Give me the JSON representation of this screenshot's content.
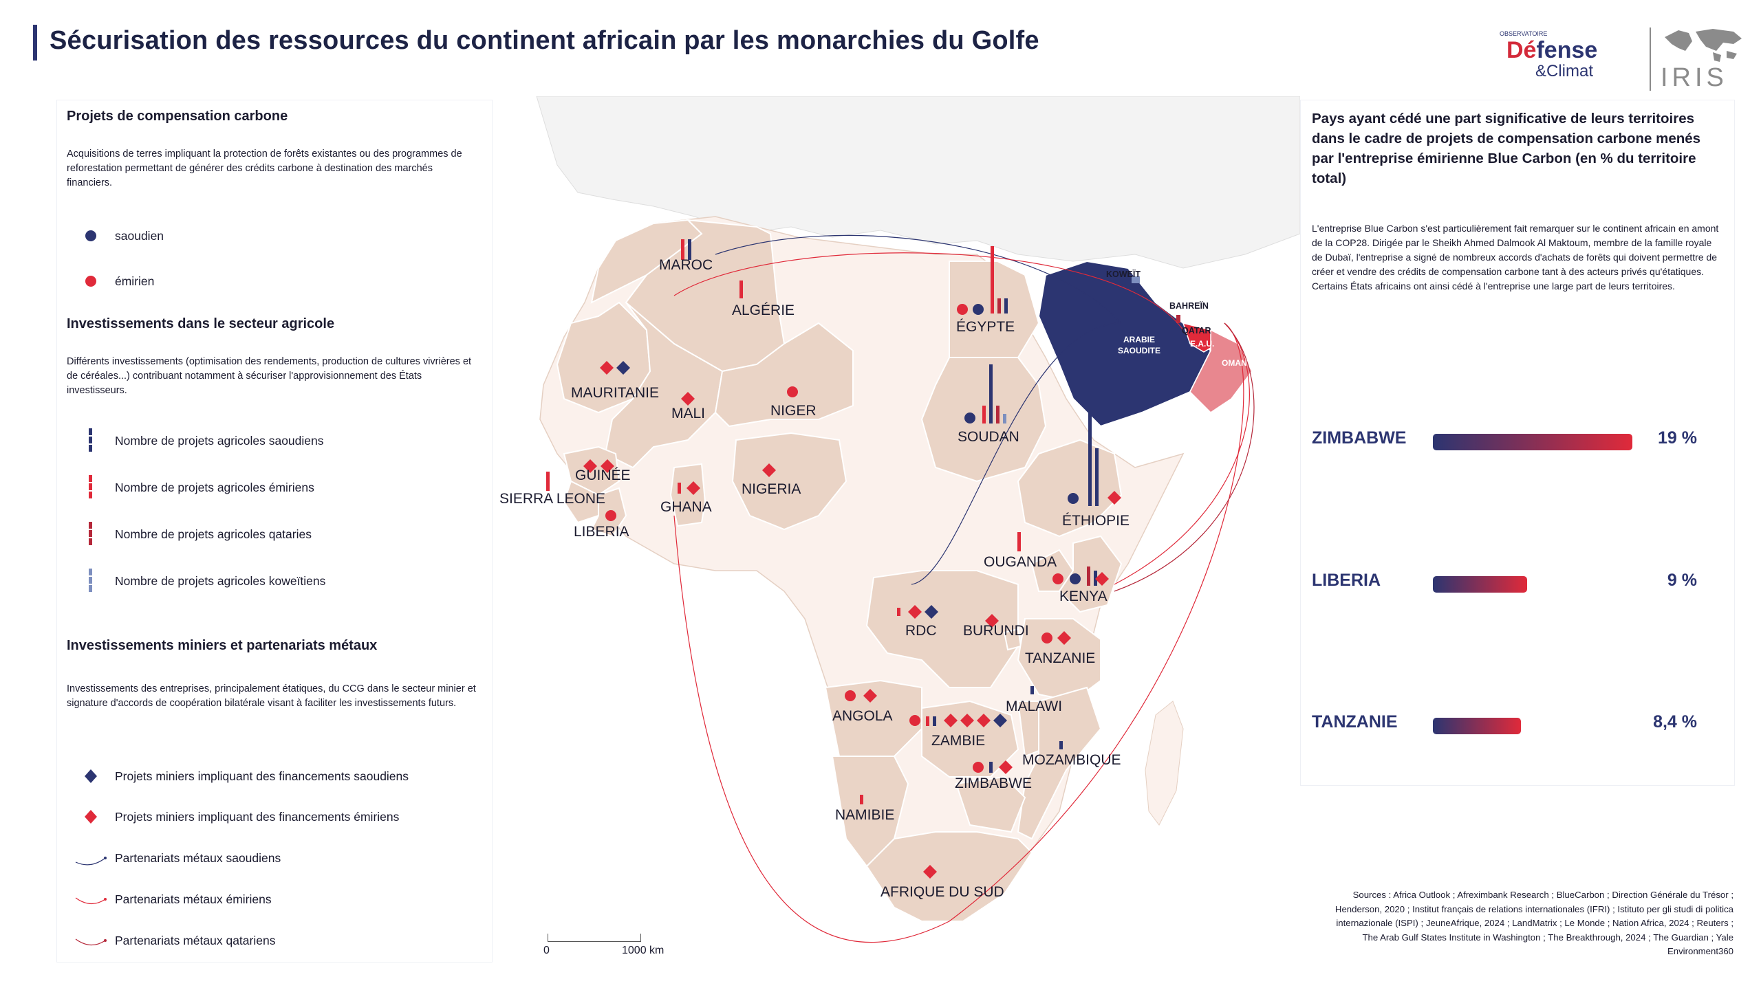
{
  "title": "Sécurisation des ressources du continent africain par les monarchies du Golfe",
  "logos": {
    "defense_pre": "OBSERVATOIRE",
    "defense_main_a": "Dé",
    "defense_main_b": "fense",
    "defense_sub": "&Climat",
    "iris": "IRIS"
  },
  "legend": {
    "sections": [
      {
        "title": "Projets de compensation carbone",
        "description": "Acquisitions de terres impliquant la protection de forêts existantes ou des programmes de reforestation permettant de générer des crédits carbone à destination des marchés financiers.",
        "items": [
          {
            "label": "saoudien",
            "symbol": "circle",
            "color": "#2c3571"
          },
          {
            "label": "émirien",
            "symbol": "circle",
            "color": "#e02a3a"
          }
        ]
      },
      {
        "title": "Investissements dans le secteur agricole",
        "description": "Différents investissements (optimisation des rendements, production de cultures vivrières et de céréales...) contribuant notamment à sécuriser l'approvisionnement des États investisseurs.",
        "items": [
          {
            "label": "Nombre de projets agricoles saoudiens",
            "symbol": "bar",
            "color": "#2c3571"
          },
          {
            "label": "Nombre de projets agricoles émiriens",
            "symbol": "bar",
            "color": "#e02a3a"
          },
          {
            "label": "Nombre de projets agricoles qataries",
            "symbol": "bar",
            "color": "#b5283a"
          },
          {
            "label": "Nombre de projets agricoles koweïtiens",
            "symbol": "bar",
            "color": "#7d8fbf"
          }
        ]
      },
      {
        "title": "Investissements miniers et partenariats métaux",
        "description": "Investissements des entreprises, principalement étatiques, du CCG dans le secteur minier et signature d'accords de coopération bilatérale visant à faciliter les investissements futurs.",
        "items": [
          {
            "label": "Projets miniers impliquant des financements saoudiens",
            "symbol": "diamond",
            "color": "#2c3571"
          },
          {
            "label": "Projets miniers impliquant des financements émiriens",
            "symbol": "diamond",
            "color": "#e02a3a"
          },
          {
            "label": "Partenariats métaux saoudiens",
            "symbol": "arc",
            "color": "#2c3571"
          },
          {
            "label": "Partenariats métaux émiriens",
            "symbol": "arc",
            "color": "#e02a3a"
          },
          {
            "label": "Partenariats métaux qatariens",
            "symbol": "arc",
            "color": "#b5283a"
          }
        ]
      }
    ]
  },
  "right_panel": {
    "title": "Pays ayant cédé une part significative de leurs territoires dans le cadre de projets de compensation carbone menés par l'entreprise émirienne Blue Carbon (en % du territoire total)",
    "description": "L'entreprise Blue Carbon s'est particulièrement fait remarquer sur le continent africain en amont de la COP28. Dirigée par le Sheikh Ahmed Dalmook Al Maktoum, membre de la famille royale de Dubaï, l'entreprise a signé de nombreux accords d'achats de forêts qui doivent permettre de créer et vendre des crédits de compensation carbone tant à des acteurs privés qu'étatiques. Certains États africains ont ainsi cédé à l'entreprise une large part de leurs territoires.",
    "bars": [
      {
        "country": "ZIMBABWE",
        "value": 19,
        "label": "19 %"
      },
      {
        "country": "LIBERIA",
        "value": 9,
        "label": "9 %"
      },
      {
        "country": "TANZANIE",
        "value": 8.4,
        "label": "8,4 %"
      }
    ],
    "max_value": 19
  },
  "sources": "Sources : Africa Outlook ; Afreximbank Research ; BlueCarbon ; Direction Générale du Trésor ; Henderson, 2020 ; Institut français de relations internationales (IFRI) ; Istituto per gli studi di politica internazionale (ISPI) ; JeuneAfrique, 2024 ; LandMatrix ; Le Monde ; Nation Africa, 2024 ; Reuters ; The Arab Gulf States Institute in Washington ; The Breakthrough, 2024 ; The Guardian ; Yale Environment360",
  "scale": {
    "start": "0",
    "end": "1000 km"
  },
  "map": {
    "countries": {
      "maroc": "MAROC",
      "algerie": "ALGÉRIE",
      "egypte": "ÉGYPTE",
      "mauritanie": "MAURITANIE",
      "mali": "MALI",
      "niger": "NIGER",
      "soudan": "SOUDAN",
      "guinee": "GUINÉE",
      "sierra_leone": "SIERRA LEONE",
      "liberia": "LIBERIA",
      "ghana": "GHANA",
      "nigeria": "NIGERIA",
      "ethiopie": "ÉTHIOPIE",
      "ouganda": "OUGANDA",
      "kenya": "KENYA",
      "rdc": "RDC",
      "burundi": "BURUNDI",
      "tanzanie": "TANZANIE",
      "angola": "ANGOLA",
      "malawi": "MALAWI",
      "zambie": "ZAMBIE",
      "mozambique": "MOZAMBIQUE",
      "zimbabwe": "ZIMBABWE",
      "namibie": "NAMIBIE",
      "afrique_du_sud": "AFRIQUE DU SUD",
      "koweit": "KOWEÏT",
      "bahrein": "BAHREÏN",
      "qatar": "QATAR",
      "eau": "E.A.U.",
      "oman": "OMAN",
      "arabie_line1": "ARABIE",
      "arabie_line2": "SAOUDITE"
    },
    "colors": {
      "saudi": "#2c3571",
      "uae": "#e02a3a",
      "qatar": "#b5283a",
      "kuwait": "#7d8fbf",
      "oman": "#e8878f",
      "focus_land": "#ead4c6",
      "other_land": "#fbf1ec",
      "background": "#f3f3f3"
    }
  }
}
